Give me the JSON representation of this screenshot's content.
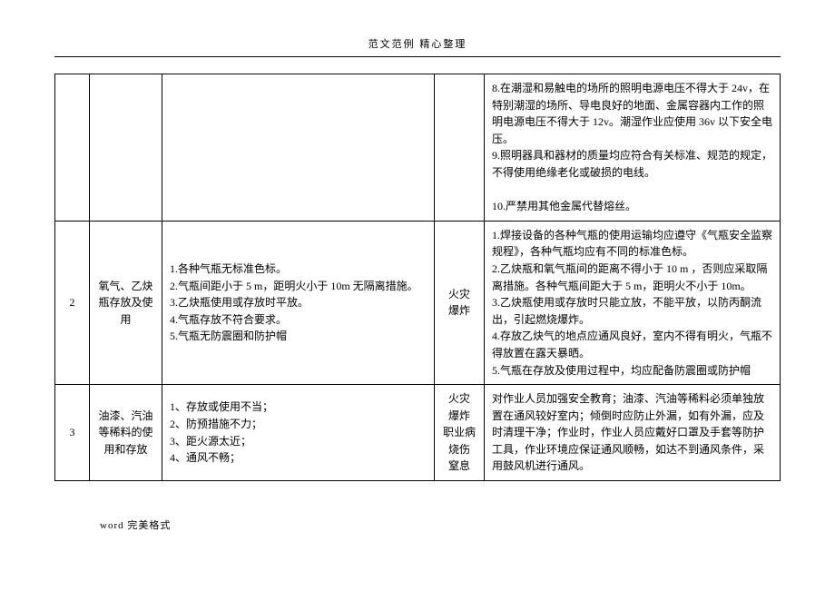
{
  "header": "范文范例  精心整理",
  "footer": "word 完美格式",
  "table": {
    "rows": [
      {
        "num": "",
        "item": "",
        "desc": "",
        "hazard": "",
        "measure": "8.在潮湿和易触电的场所的照明电源电压不得大于 24v，在特别潮湿的场所、导电良好的地面、金属容器内工作的照明电源电压不得大于 12v。潮湿作业应使用 36v 以下安全电压。\n9.照明器具和器材的质量均应符合有关标准、规范的规定，不得使用绝缘老化或破损的电线。\n\n10.严禁用其他金属代替熔丝。"
      },
      {
        "num": "2",
        "item": "氧气、乙炔瓶存放及使用",
        "desc": "1.各种气瓶无标准色标。\n2.气瓶间距小于 5   m，距明火小于 10m 无隔离措施。\n3.乙炔瓶使用或存放时平放。\n4.气瓶存放不符合要求。\n5.气瓶无防震圈和防护帽",
        "hazard": "火灾\n爆炸",
        "measure": "1.焊接设备的各种气瓶的使用运输均应遵守《气瓶安全监察规程》，各种气瓶均应有不同的标准色标。\n2.乙炔瓶和氧气瓶间的距离不得小于 10 m ，否则应采取隔离措施。各种气瓶间距大于 5 m，距明火不小于 10m。\n3.乙炔瓶使用或存放时只能立放，不能平放，以防丙酮流出，引起燃烧爆炸。\n4.存放乙炔气的地点应通风良好，室内不得有明火，气瓶不得放置在露天暴晒。\n5.气瓶在存放及使用过程中，均应配备防震圈或防护帽"
      },
      {
        "num": "3",
        "item": "油漆、汽油等稀料的使用和存放",
        "desc": "1、存放或使用不当；\n2、防预措施不力；\n3、距火源太近；\n4、通风不畅；",
        "hazard": "火灾\n爆炸\n职业病\n烧伤\n窒息",
        "measure": "对作业人员加强安全教育；油漆、汽油等稀料必须单独放置在通风较好室内；倾倒时应防止外漏，如有外漏，应及时清理干净；作业时，作业人员应戴好口罩及手套等防护工具，作业环境应保证通风顺畅，如达不到通风条件，采用鼓风机进行通风。"
      }
    ]
  }
}
